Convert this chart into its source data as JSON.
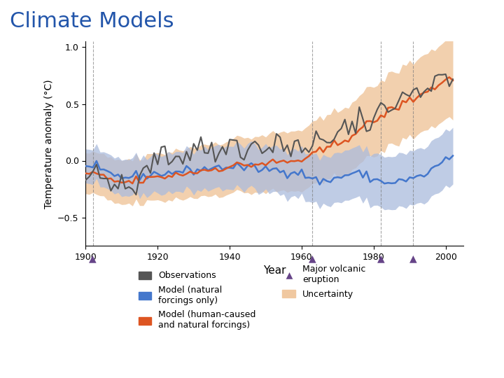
{
  "title": "Climate Models",
  "title_color": "#2255aa",
  "title_fontsize": 22,
  "xlabel": "Year",
  "ylabel": "Temperature anomaly (°C)",
  "xlim": [
    1900,
    2005
  ],
  "ylim": [
    -0.75,
    1.05
  ],
  "yticks": [
    -0.5,
    0.0,
    0.5,
    1.0
  ],
  "xticks": [
    1900,
    1920,
    1940,
    1960,
    1980,
    2000
  ],
  "volcanic_years": [
    1902,
    1963,
    1982,
    1991
  ],
  "dashed_lines_years": [
    1902,
    1963,
    1982,
    1991
  ],
  "obs_color": "#555555",
  "natural_color": "#4477cc",
  "human_color": "#dd5522",
  "natural_band_color": "#aabbdd",
  "human_band_color": "#f0c8a0",
  "volcano_color": "#664488"
}
